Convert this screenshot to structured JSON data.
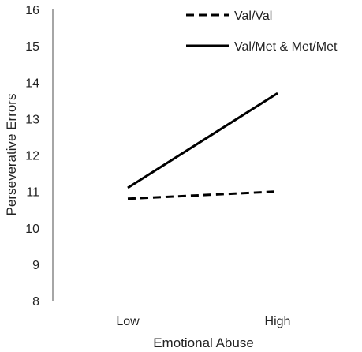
{
  "chart_data": {
    "type": "line",
    "title": "",
    "xlabel": "Emotional Abuse",
    "ylabel": "Perseverative Errors",
    "categories": [
      "Low",
      "High"
    ],
    "ylim": [
      8,
      16
    ],
    "yticks": [
      "8",
      "9",
      "10",
      "11",
      "12",
      "13",
      "14",
      "15",
      "16"
    ],
    "grid": false,
    "legend_position": "top-right",
    "series": [
      {
        "name": "Val/Val",
        "values": [
          10.8,
          11.0
        ],
        "style": "dashed",
        "color": "#000000"
      },
      {
        "name": "Val/Met & Met/Met",
        "values": [
          11.1,
          13.7
        ],
        "style": "solid",
        "color": "#000000"
      }
    ]
  }
}
